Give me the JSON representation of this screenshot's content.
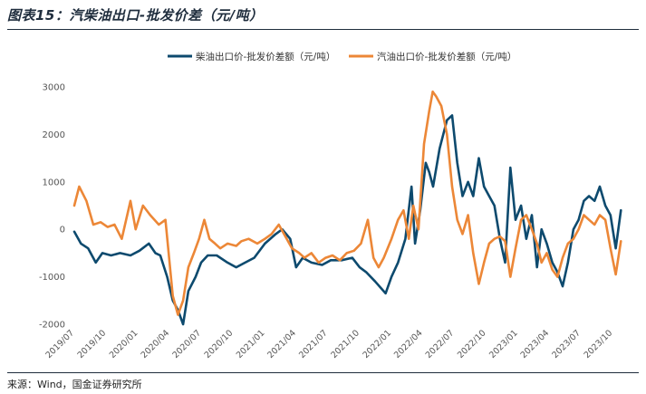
{
  "figure": {
    "title": "图表15：汽柴油出口-批发价差（元/吨）",
    "source": "来源：Wind，国金证券研究所"
  },
  "colors": {
    "diesel": "#0d4a6e",
    "gasoline": "#ec8737",
    "rule": "#1f2d3d"
  },
  "chart_data": {
    "type": "line",
    "title": "",
    "xlabel": "",
    "ylabel": "",
    "ylim": [
      -2000,
      3000
    ],
    "yticks": [
      -2000,
      -1000,
      0,
      1000,
      2000,
      3000
    ],
    "xlim": [
      "2019-07",
      "2023-11"
    ],
    "xticks": [
      "2019/07",
      "2019/10",
      "2020/01",
      "2020/04",
      "2020/07",
      "2020/10",
      "2021/01",
      "2021/04",
      "2021/07",
      "2021/10",
      "2022/01",
      "2022/04",
      "2022/07",
      "2022/10",
      "2023/01",
      "2023/04",
      "2023/07",
      "2023/10"
    ],
    "grid": false,
    "legend": "top-center",
    "series": [
      {
        "name": "柴油出口价-批发价差额（元/吨）",
        "color": "#0d4a6e",
        "points": [
          [
            "2019-07-01",
            -50
          ],
          [
            "2019-07-20",
            -300
          ],
          [
            "2019-08-10",
            -400
          ],
          [
            "2019-09-01",
            -700
          ],
          [
            "2019-09-20",
            -500
          ],
          [
            "2019-10-15",
            -550
          ],
          [
            "2019-11-10",
            -500
          ],
          [
            "2019-12-10",
            -550
          ],
          [
            "2020-01-05",
            -450
          ],
          [
            "2020-02-01",
            -300
          ],
          [
            "2020-02-20",
            -500
          ],
          [
            "2020-03-05",
            -550
          ],
          [
            "2020-03-25",
            -1000
          ],
          [
            "2020-04-10",
            -1500
          ],
          [
            "2020-04-25",
            -1700
          ],
          [
            "2020-05-10",
            -2000
          ],
          [
            "2020-05-25",
            -1300
          ],
          [
            "2020-06-15",
            -1000
          ],
          [
            "2020-07-01",
            -700
          ],
          [
            "2020-07-20",
            -550
          ],
          [
            "2020-08-15",
            -550
          ],
          [
            "2020-09-15",
            -700
          ],
          [
            "2020-10-10",
            -800
          ],
          [
            "2020-11-05",
            -700
          ],
          [
            "2020-12-01",
            -600
          ],
          [
            "2021-01-01",
            -300
          ],
          [
            "2021-02-01",
            -100
          ],
          [
            "2021-02-20",
            0
          ],
          [
            "2021-03-15",
            -200
          ],
          [
            "2021-04-01",
            -800
          ],
          [
            "2021-04-20",
            -600
          ],
          [
            "2021-05-15",
            -700
          ],
          [
            "2021-06-15",
            -750
          ],
          [
            "2021-07-10",
            -650
          ],
          [
            "2021-08-10",
            -650
          ],
          [
            "2021-09-10",
            -600
          ],
          [
            "2021-10-01",
            -800
          ],
          [
            "2021-10-20",
            -900
          ],
          [
            "2021-11-15",
            -1100
          ],
          [
            "2021-12-15",
            -1350
          ],
          [
            "2022-01-01",
            -1000
          ],
          [
            "2022-01-20",
            -700
          ],
          [
            "2022-02-10",
            -200
          ],
          [
            "2022-02-28",
            900
          ],
          [
            "2022-03-10",
            -300
          ],
          [
            "2022-03-25",
            400
          ],
          [
            "2022-04-10",
            1400
          ],
          [
            "2022-04-20",
            1200
          ],
          [
            "2022-05-01",
            900
          ],
          [
            "2022-05-20",
            1700
          ],
          [
            "2022-06-10",
            2300
          ],
          [
            "2022-06-25",
            2400
          ],
          [
            "2022-07-10",
            1400
          ],
          [
            "2022-07-25",
            700
          ],
          [
            "2022-08-10",
            1000
          ],
          [
            "2022-08-25",
            700
          ],
          [
            "2022-09-10",
            1500
          ],
          [
            "2022-09-25",
            900
          ],
          [
            "2022-10-10",
            700
          ],
          [
            "2022-10-25",
            500
          ],
          [
            "2022-11-10",
            -200
          ],
          [
            "2022-11-25",
            -700
          ],
          [
            "2022-12-10",
            1300
          ],
          [
            "2022-12-25",
            200
          ],
          [
            "2023-01-10",
            500
          ],
          [
            "2023-01-25",
            -200
          ],
          [
            "2023-02-10",
            300
          ],
          [
            "2023-02-25",
            -800
          ],
          [
            "2023-03-10",
            0
          ],
          [
            "2023-03-25",
            -300
          ],
          [
            "2023-04-10",
            -700
          ],
          [
            "2023-04-25",
            -900
          ],
          [
            "2023-05-10",
            -1200
          ],
          [
            "2023-05-25",
            -700
          ],
          [
            "2023-06-10",
            0
          ],
          [
            "2023-06-25",
            200
          ],
          [
            "2023-07-10",
            600
          ],
          [
            "2023-07-25",
            700
          ],
          [
            "2023-08-10",
            600
          ],
          [
            "2023-08-25",
            900
          ],
          [
            "2023-09-10",
            500
          ],
          [
            "2023-09-25",
            300
          ],
          [
            "2023-10-10",
            -400
          ],
          [
            "2023-10-25",
            400
          ]
        ]
      },
      {
        "name": "汽油出口价-批发价差额（元/吨）",
        "color": "#ec8737",
        "points": [
          [
            "2019-07-01",
            500
          ],
          [
            "2019-07-15",
            900
          ],
          [
            "2019-08-05",
            600
          ],
          [
            "2019-08-25",
            100
          ],
          [
            "2019-09-15",
            150
          ],
          [
            "2019-10-05",
            50
          ],
          [
            "2019-10-25",
            100
          ],
          [
            "2019-11-15",
            -200
          ],
          [
            "2019-12-10",
            600
          ],
          [
            "2019-12-25",
            0
          ],
          [
            "2020-01-15",
            500
          ],
          [
            "2020-02-05",
            300
          ],
          [
            "2020-03-01",
            100
          ],
          [
            "2020-03-20",
            200
          ],
          [
            "2020-04-10",
            -1400
          ],
          [
            "2020-04-25",
            -1800
          ],
          [
            "2020-05-10",
            -1500
          ],
          [
            "2020-05-25",
            -800
          ],
          [
            "2020-06-10",
            -500
          ],
          [
            "2020-06-25",
            -200
          ],
          [
            "2020-07-10",
            200
          ],
          [
            "2020-07-25",
            -200
          ],
          [
            "2020-08-10",
            -300
          ],
          [
            "2020-08-25",
            -400
          ],
          [
            "2020-09-15",
            -300
          ],
          [
            "2020-10-10",
            -350
          ],
          [
            "2020-10-25",
            -250
          ],
          [
            "2020-11-15",
            -200
          ],
          [
            "2020-12-10",
            -300
          ],
          [
            "2021-01-01",
            -200
          ],
          [
            "2021-01-20",
            -100
          ],
          [
            "2021-02-10",
            100
          ],
          [
            "2021-03-01",
            -150
          ],
          [
            "2021-03-20",
            -400
          ],
          [
            "2021-04-10",
            -500
          ],
          [
            "2021-04-25",
            -600
          ],
          [
            "2021-05-15",
            -500
          ],
          [
            "2021-06-05",
            -700
          ],
          [
            "2021-06-25",
            -600
          ],
          [
            "2021-07-15",
            -550
          ],
          [
            "2021-08-05",
            -650
          ],
          [
            "2021-08-25",
            -500
          ],
          [
            "2021-09-15",
            -450
          ],
          [
            "2021-10-05",
            -300
          ],
          [
            "2021-10-25",
            200
          ],
          [
            "2021-11-10",
            -600
          ],
          [
            "2021-11-25",
            -800
          ],
          [
            "2021-12-10",
            -600
          ],
          [
            "2022-01-01",
            -200
          ],
          [
            "2022-01-20",
            200
          ],
          [
            "2022-02-05",
            400
          ],
          [
            "2022-02-20",
            -200
          ],
          [
            "2022-03-05",
            500
          ],
          [
            "2022-03-20",
            0
          ],
          [
            "2022-04-05",
            1800
          ],
          [
            "2022-04-20",
            2500
          ],
          [
            "2022-04-30",
            2900
          ],
          [
            "2022-05-10",
            2800
          ],
          [
            "2022-05-25",
            2600
          ],
          [
            "2022-06-10",
            2000
          ],
          [
            "2022-06-25",
            900
          ],
          [
            "2022-07-10",
            200
          ],
          [
            "2022-07-25",
            -100
          ],
          [
            "2022-08-10",
            300
          ],
          [
            "2022-08-25",
            -500
          ],
          [
            "2022-09-10",
            -1150
          ],
          [
            "2022-09-25",
            -700
          ],
          [
            "2022-10-10",
            -300
          ],
          [
            "2022-10-25",
            -200
          ],
          [
            "2022-11-10",
            -150
          ],
          [
            "2022-11-25",
            -250
          ],
          [
            "2022-12-10",
            -1000
          ],
          [
            "2022-12-25",
            -400
          ],
          [
            "2023-01-10",
            200
          ],
          [
            "2023-01-25",
            300
          ],
          [
            "2023-02-10",
            0
          ],
          [
            "2023-02-25",
            -300
          ],
          [
            "2023-03-10",
            -700
          ],
          [
            "2023-03-25",
            -500
          ],
          [
            "2023-04-10",
            -850
          ],
          [
            "2023-04-25",
            -1000
          ],
          [
            "2023-05-10",
            -600
          ],
          [
            "2023-05-25",
            -300
          ],
          [
            "2023-06-10",
            -200
          ],
          [
            "2023-06-25",
            0
          ],
          [
            "2023-07-10",
            300
          ],
          [
            "2023-07-25",
            200
          ],
          [
            "2023-08-10",
            100
          ],
          [
            "2023-08-25",
            300
          ],
          [
            "2023-09-10",
            200
          ],
          [
            "2023-09-25",
            -400
          ],
          [
            "2023-10-10",
            -950
          ],
          [
            "2023-10-25",
            -250
          ]
        ]
      }
    ]
  }
}
